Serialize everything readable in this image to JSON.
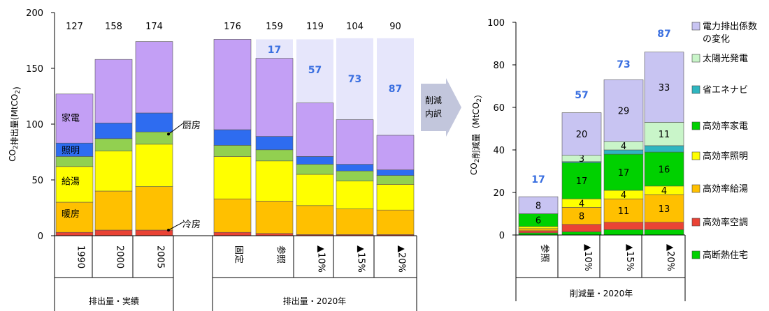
{
  "colors": {
    "reizo": "#ea4335",
    "danbo": "#ffc000",
    "kyuto": "#ffff00",
    "chubo": "#92d050",
    "shomei": "#2e6cf0",
    "kaden": "#c39ff5",
    "gap": "#e6e6fb",
    "kaden_hikari": "#c8c4f2",
    "taiyo": "#c9f5c9",
    "shoene": "#2fb6c0",
    "green": "#00d100",
    "yellow": "#ffff00",
    "orange": "#ffc000",
    "red": "#ea4335",
    "arrow": "#c2c6dc"
  },
  "chart_data": [
    {
      "type": "bar",
      "stacked": true,
      "ylabel": "CO2排出量(MtCO2)",
      "ylim": [
        0,
        200
      ],
      "yticks": [
        "0",
        "50",
        "100",
        "150",
        "200"
      ],
      "categories": [
        "1990",
        "2000",
        "2005",
        "固定",
        "参照",
        "▲10%",
        "▲15%",
        "▲20%"
      ],
      "groups": [
        {
          "label": "排出量・実績",
          "categories": [
            "1990",
            "2000",
            "2005"
          ]
        },
        {
          "label": "排出量・2020年",
          "categories": [
            "固定",
            "参照",
            "▲10%",
            "▲15%",
            "▲20%"
          ]
        }
      ],
      "totals": [
        "127",
        "158",
        "174",
        "176",
        "159",
        "119",
        "104",
        "90"
      ],
      "series": [
        {
          "name": "冷房",
          "color_key": "reizo",
          "values": [
            3,
            5,
            5,
            3,
            2,
            1,
            1,
            1
          ]
        },
        {
          "name": "暖房",
          "color_key": "danbo",
          "values": [
            27,
            35,
            39,
            30,
            29,
            26,
            23,
            22
          ]
        },
        {
          "name": "給湯",
          "color_key": "kyuto",
          "values": [
            32,
            36,
            38,
            38,
            36,
            28,
            25,
            23
          ]
        },
        {
          "name": "厨房",
          "color_key": "chubo",
          "values": [
            9,
            11,
            11,
            10,
            10,
            9,
            9,
            8
          ]
        },
        {
          "name": "照明",
          "color_key": "shomei",
          "values": [
            12,
            14,
            17,
            14,
            12,
            7,
            6,
            5
          ]
        },
        {
          "name": "家電",
          "color_key": "kaden",
          "values": [
            44,
            57,
            64,
            81,
            70,
            48,
            40,
            31
          ]
        }
      ],
      "reduction_gap": [
        "",
        "",
        "",
        "",
        "17",
        "57",
        "73",
        "87"
      ],
      "reduction_gap_values": [
        0,
        0,
        0,
        0,
        17,
        57,
        73,
        87
      ],
      "inside_labels": [
        {
          "text": "家電",
          "category": "1990",
          "y": 106
        },
        {
          "text": "照明",
          "category": "1990",
          "y": 77
        },
        {
          "text": "給湯",
          "category": "1990",
          "y": 49
        },
        {
          "text": "暖房",
          "category": "1990",
          "y": 20
        }
      ],
      "callouts": [
        {
          "text": "厨房",
          "category": "2005",
          "y": 91
        },
        {
          "text": "冷房",
          "category": "2005",
          "y": 5
        }
      ]
    },
    {
      "type": "bar",
      "stacked": true,
      "ylabel": "CO2削減量（MtCO2）",
      "xlabel": "削減量・2020年",
      "ylim": [
        0,
        100
      ],
      "yticks": [
        "0",
        "20",
        "40",
        "60",
        "80",
        "100"
      ],
      "categories": [
        "参照",
        "▲10%",
        "▲15%",
        "▲20%"
      ],
      "totals": [
        "17",
        "57",
        "73",
        "87"
      ],
      "series": [
        {
          "name": "高断熱住宅",
          "color_key": "green",
          "values": [
            1,
            1.5,
            2.5,
            2.5
          ],
          "labels": [
            "",
            "",
            "",
            ""
          ]
        },
        {
          "name": "高効率空調",
          "color_key": "red",
          "values": [
            1,
            3.5,
            3.5,
            3.5
          ],
          "labels": [
            "",
            "",
            "",
            ""
          ]
        },
        {
          "name": "高効率給湯",
          "color_key": "orange",
          "values": [
            1,
            8,
            11,
            13
          ],
          "labels": [
            "",
            "8",
            "11",
            "13"
          ]
        },
        {
          "name": "高効率照明",
          "color_key": "yellow",
          "values": [
            1,
            4,
            4,
            4
          ],
          "labels": [
            "",
            "4",
            "4",
            "4"
          ]
        },
        {
          "name": "高効率家電",
          "color_key": "green",
          "values": [
            6,
            17,
            17,
            16
          ],
          "labels": [
            "6",
            "17",
            "17",
            "16"
          ]
        },
        {
          "name": "省エネナビ",
          "color_key": "shoene",
          "values": [
            0,
            0.5,
            2,
            3
          ],
          "labels": [
            "",
            "",
            "",
            ""
          ]
        },
        {
          "name": "太陽光発電",
          "color_key": "taiyo",
          "values": [
            0,
            3,
            4,
            11
          ],
          "labels": [
            "",
            "3",
            "4",
            "11"
          ]
        },
        {
          "name": "電力排出係数の変化",
          "color_key": "kaden_hikari",
          "values": [
            8,
            20,
            29,
            33
          ],
          "labels": [
            "8",
            "20",
            "29",
            "33"
          ]
        }
      ],
      "legend_position": "right",
      "legend": [
        "電力排出係数",
        "の変化",
        "太陽光発電",
        "省エネナビ",
        "高効率家電",
        "高効率照明",
        "高効率給湯",
        "高効率空調",
        "高断熱住宅"
      ]
    }
  ],
  "arrow_label": [
    "削減",
    "内訳"
  ]
}
